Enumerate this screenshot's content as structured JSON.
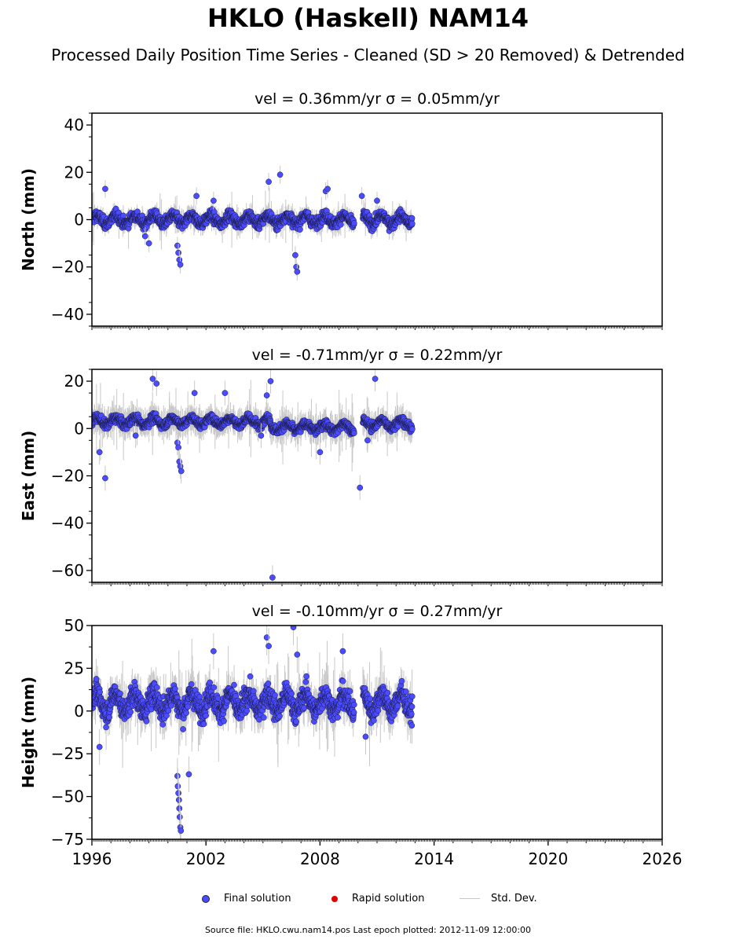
{
  "header": {
    "title": "HKLO (Haskell) NAM14",
    "subtitle": "Processed Daily Position Time Series - Cleaned (SD > 20 Removed) & Detrended"
  },
  "colors": {
    "final": "#4b4bff",
    "rapid": "#e00000",
    "stddev": "#c8c8c8"
  },
  "legend": {
    "final": "Final solution",
    "rapid": "Rapid solution",
    "stddev": "Std. Dev."
  },
  "footer": "Source file: HKLO.cwu.nam14.pos  Last epoch plotted: 2012-11-09 12:00:00",
  "chart_data": [
    {
      "type": "scatter",
      "title": "vel = 0.36mm/yr   σ = 0.05mm/yr",
      "ylabel": "North (mm)",
      "xlim": [
        1996,
        2026
      ],
      "ylim": [
        -45,
        45
      ],
      "yticks": [
        -40,
        -20,
        0,
        20,
        40
      ],
      "x_range_of_data": [
        1996.0,
        2012.86
      ],
      "outliers": [
        {
          "x": 1996.7,
          "y": 13
        },
        {
          "x": 1999.0,
          "y": -10
        },
        {
          "x": 1998.8,
          "y": -7
        },
        {
          "x": 2000.5,
          "y": -11
        },
        {
          "x": 2000.55,
          "y": -14
        },
        {
          "x": 2000.6,
          "y": -17
        },
        {
          "x": 2000.65,
          "y": -19
        },
        {
          "x": 2001.5,
          "y": 10
        },
        {
          "x": 2002.4,
          "y": 8
        },
        {
          "x": 2005.3,
          "y": 16
        },
        {
          "x": 2005.9,
          "y": 19
        },
        {
          "x": 2006.7,
          "y": -15
        },
        {
          "x": 2006.75,
          "y": -20
        },
        {
          "x": 2006.8,
          "y": -22
        },
        {
          "x": 2008.3,
          "y": 12
        },
        {
          "x": 2008.4,
          "y": 13
        },
        {
          "x": 2010.2,
          "y": 10
        },
        {
          "x": 2011.0,
          "y": 8
        }
      ]
    },
    {
      "type": "scatter",
      "title": "vel = -0.71mm/yr   σ = 0.22mm/yr",
      "ylabel": "East (mm)",
      "xlim": [
        1996,
        2026
      ],
      "ylim": [
        -65,
        25
      ],
      "yticks": [
        -60,
        -40,
        -20,
        0,
        20
      ],
      "x_range_of_data": [
        1996.0,
        2012.86
      ],
      "outliers": [
        {
          "x": 1996.4,
          "y": -10
        },
        {
          "x": 1996.7,
          "y": -21
        },
        {
          "x": 1998.3,
          "y": -3
        },
        {
          "x": 1999.2,
          "y": 21
        },
        {
          "x": 1999.4,
          "y": 19
        },
        {
          "x": 2000.5,
          "y": -6
        },
        {
          "x": 2000.55,
          "y": -8
        },
        {
          "x": 2000.6,
          "y": -14
        },
        {
          "x": 2000.65,
          "y": -16
        },
        {
          "x": 2000.7,
          "y": -18
        },
        {
          "x": 2001.4,
          "y": 15
        },
        {
          "x": 2003.0,
          "y": 15
        },
        {
          "x": 2004.9,
          "y": -3
        },
        {
          "x": 2005.4,
          "y": 20
        },
        {
          "x": 2005.5,
          "y": -63
        },
        {
          "x": 2008.0,
          "y": -10
        },
        {
          "x": 2010.1,
          "y": -25
        },
        {
          "x": 2010.5,
          "y": -5
        },
        {
          "x": 2010.9,
          "y": 21
        },
        {
          "x": 2005.2,
          "y": 14
        }
      ]
    },
    {
      "type": "scatter",
      "title": "vel = -0.10mm/yr   σ = 0.27mm/yr",
      "ylabel": "Height (mm)",
      "xlim": [
        1996,
        2026
      ],
      "ylim": [
        -75,
        50
      ],
      "yticks": [
        -75,
        -50,
        -25,
        0,
        25,
        50
      ],
      "xticks": [
        1996,
        2002,
        2008,
        2014,
        2020,
        2026
      ],
      "x_range_of_data": [
        1996.0,
        2012.86
      ],
      "outliers": [
        {
          "x": 1996.4,
          "y": -21
        },
        {
          "x": 2000.5,
          "y": -38
        },
        {
          "x": 2000.52,
          "y": -44
        },
        {
          "x": 2000.55,
          "y": -48
        },
        {
          "x": 2000.58,
          "y": -52
        },
        {
          "x": 2000.6,
          "y": -57
        },
        {
          "x": 2000.62,
          "y": -62
        },
        {
          "x": 2000.65,
          "y": -68
        },
        {
          "x": 2000.68,
          "y": -70
        },
        {
          "x": 2001.1,
          "y": -37
        },
        {
          "x": 2002.4,
          "y": 35
        },
        {
          "x": 2005.2,
          "y": 43
        },
        {
          "x": 2005.3,
          "y": 38
        },
        {
          "x": 2006.6,
          "y": 49
        },
        {
          "x": 2006.8,
          "y": 33
        },
        {
          "x": 2010.4,
          "y": -15
        },
        {
          "x": 2009.2,
          "y": 35
        }
      ]
    }
  ]
}
